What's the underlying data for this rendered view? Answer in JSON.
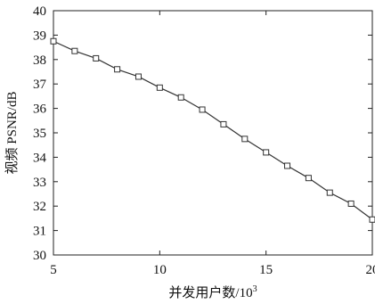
{
  "chart_data": {
    "type": "line",
    "x_ticks": [
      5,
      10,
      15,
      20
    ],
    "y_ticks": [
      30,
      31,
      32,
      33,
      34,
      35,
      36,
      37,
      38,
      39,
      40
    ],
    "xlim": [
      5,
      20
    ],
    "ylim": [
      30,
      40
    ],
    "xlabel_main": "并发用户数/10",
    "xlabel_sup": "3",
    "ylabel": "视频 PSNR/dB",
    "grid": false,
    "series": [
      {
        "x": [
          5,
          6,
          7,
          8,
          9,
          10,
          11,
          12,
          13,
          14,
          15,
          16,
          17,
          18,
          19,
          20
        ],
        "y": [
          38.75,
          38.35,
          38.05,
          37.6,
          37.3,
          36.85,
          36.45,
          35.95,
          35.35,
          34.75,
          34.2,
          33.65,
          33.15,
          32.55,
          32.1,
          31.45
        ],
        "color": "#333333",
        "marker": "square"
      }
    ]
  }
}
